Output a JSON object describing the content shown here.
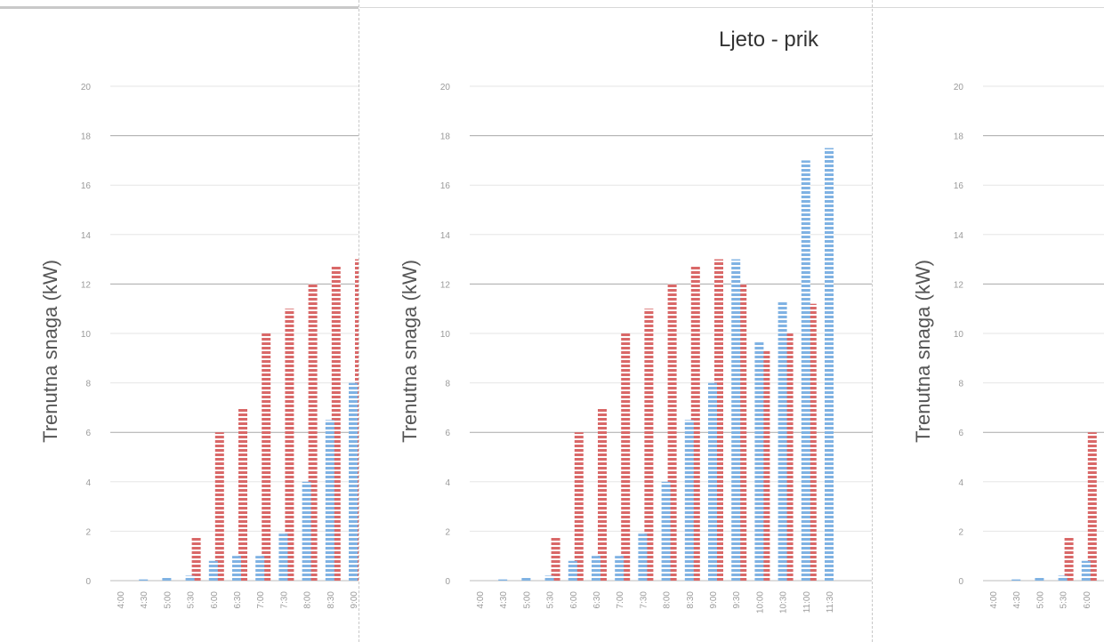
{
  "chart_data": {
    "type": "bar",
    "title": "Ljeto - prik",
    "ylabel": "Trenutna snaga (kW)",
    "ylim": [
      0,
      20
    ],
    "yticks": [
      "0",
      "2",
      "4",
      "6",
      "8",
      "10",
      "12",
      "14",
      "16",
      "18",
      "20"
    ],
    "categories": [
      "4:00",
      "4:30",
      "5:00",
      "5:30",
      "6:00",
      "6:30",
      "7:00",
      "7:30",
      "8:00",
      "8:30",
      "9:00",
      "9:30",
      "10:00",
      "10:30",
      "11:00",
      "11:30"
    ],
    "series": [
      {
        "values": [
          0,
          0.05,
          0.15,
          0.2,
          0.8,
          1.0,
          1.0,
          1.9,
          4.0,
          6.5,
          8.0,
          13.0,
          9.7,
          11.3,
          17.0,
          17.5
        ]
      },
      {
        "values": [
          0,
          0,
          0,
          1.8,
          6.0,
          7.0,
          10.0,
          11.0,
          12.0,
          12.7,
          13.0,
          12.0,
          9.3,
          10.0,
          11.2,
          0
        ]
      }
    ],
    "colors": {
      "series_a": "#7fb2e3",
      "series_b": "#d96868",
      "grid_major": "#a8a8a8",
      "grid_minor": "#e6e6e6"
    },
    "grid": true
  }
}
